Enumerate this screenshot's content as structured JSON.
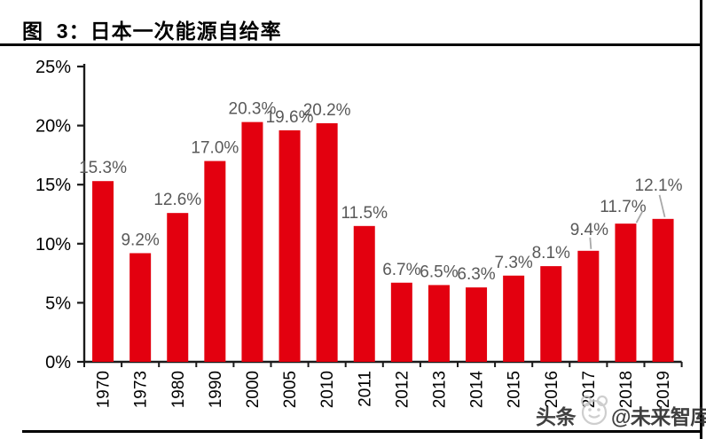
{
  "figure": {
    "title": "图  3：日本一次能源自给率"
  },
  "watermark": {
    "prefix": "头条",
    "suffix": "@未来智库"
  },
  "chart_data": {
    "type": "bar",
    "title": "日本一次能源自给率",
    "categories": [
      "1970",
      "1973",
      "1980",
      "1990",
      "2000",
      "2005",
      "2010",
      "2011",
      "2012",
      "2013",
      "2014",
      "2015",
      "2016",
      "2017",
      "2018",
      "2019"
    ],
    "values": [
      15.3,
      9.2,
      12.6,
      17.0,
      20.3,
      19.6,
      20.2,
      11.5,
      6.7,
      6.5,
      6.3,
      7.3,
      8.1,
      9.4,
      11.7,
      12.1
    ],
    "data_labels": [
      "15.3%",
      "9.2%",
      "12.6%",
      "17.0%",
      "20.3%",
      "19.6%",
      "20.2%",
      "11.5%",
      "6.7%",
      "6.5%",
      "6.3%",
      "7.3%",
      "8.1%",
      "9.4%",
      "11.7%",
      "12.1%"
    ],
    "y_ticks": [
      "25%",
      "20%",
      "15%",
      "10%",
      "5%",
      "0%"
    ],
    "ylim": [
      0,
      25
    ],
    "y_tick_step": 5,
    "xlabel": "",
    "ylabel": "",
    "grid": false,
    "legend_position": "none",
    "bar_color": "#e3000f",
    "data_label_color": "#595959",
    "axis_color": "#1a1a1a",
    "leader_line_color": "#a8a8a8"
  }
}
